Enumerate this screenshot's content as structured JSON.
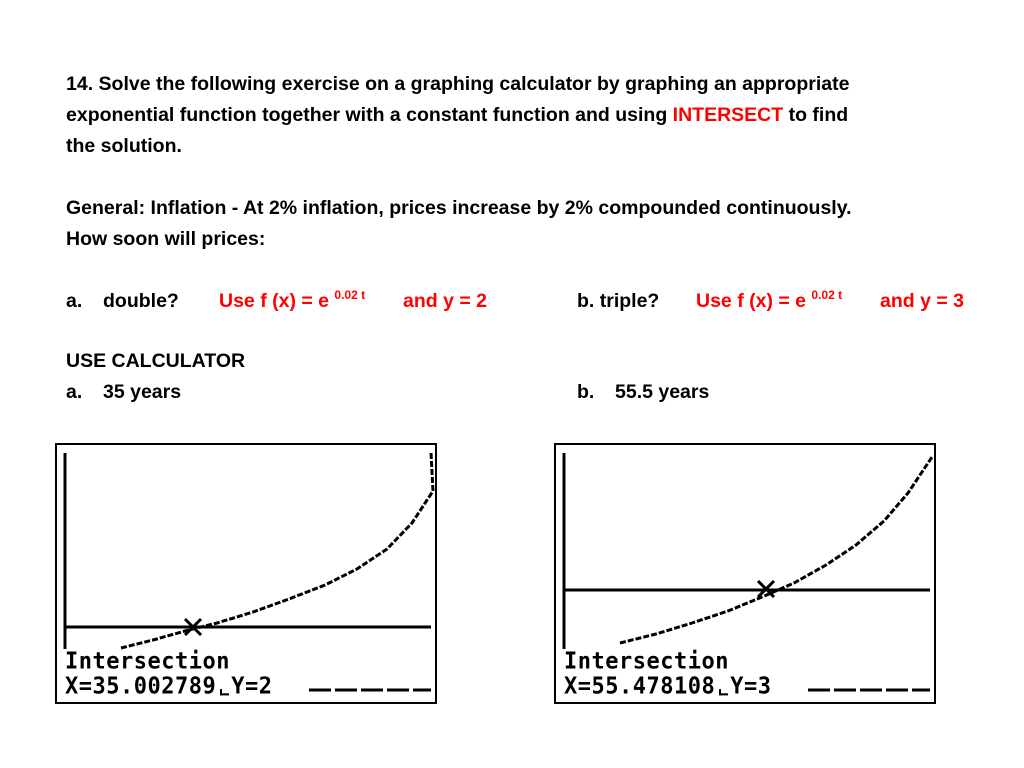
{
  "exercise": {
    "line1": "14. Solve the following exercise on a graphing calculator by graphing an appropriate",
    "line2_pre": "exponential function together with a constant function and using ",
    "line2_keyword": "INTERSECT",
    "line2_post": " to find",
    "line3": "the solution."
  },
  "general": {
    "line1": "General: Inflation - At 2% inflation, prices increase by 2% compounded continuously.",
    "line2": "How soon will prices:"
  },
  "part_a": {
    "prefix": "a.",
    "question": "double?",
    "hint_pre": "Use f (x) = e ",
    "hint_exp": "0.02 t",
    "hint_post": "and y = 2"
  },
  "part_b": {
    "question": "b. triple?",
    "hint_pre": "Use f (x) = e ",
    "hint_exp": "0.02 t",
    "hint_post": "and y = 3"
  },
  "calculator_heading": "USE CALCULATOR",
  "answers": {
    "a_prefix": "a.",
    "a_value": "35 years",
    "b_prefix": "b.",
    "b_value": "55.5 years"
  },
  "screens": [
    {
      "title": "Intersection",
      "x_readout": "X=35.002789",
      "y_readout": "Y=2",
      "constant_y": 2,
      "intersect_x": 35.002789
    },
    {
      "title": "Intersection",
      "x_readout": "X=55.478108",
      "y_readout": "Y=3",
      "constant_y": 3,
      "intersect_x": 55.478108
    }
  ],
  "colors": {
    "keyword": "#ff0000",
    "text": "#000000"
  }
}
